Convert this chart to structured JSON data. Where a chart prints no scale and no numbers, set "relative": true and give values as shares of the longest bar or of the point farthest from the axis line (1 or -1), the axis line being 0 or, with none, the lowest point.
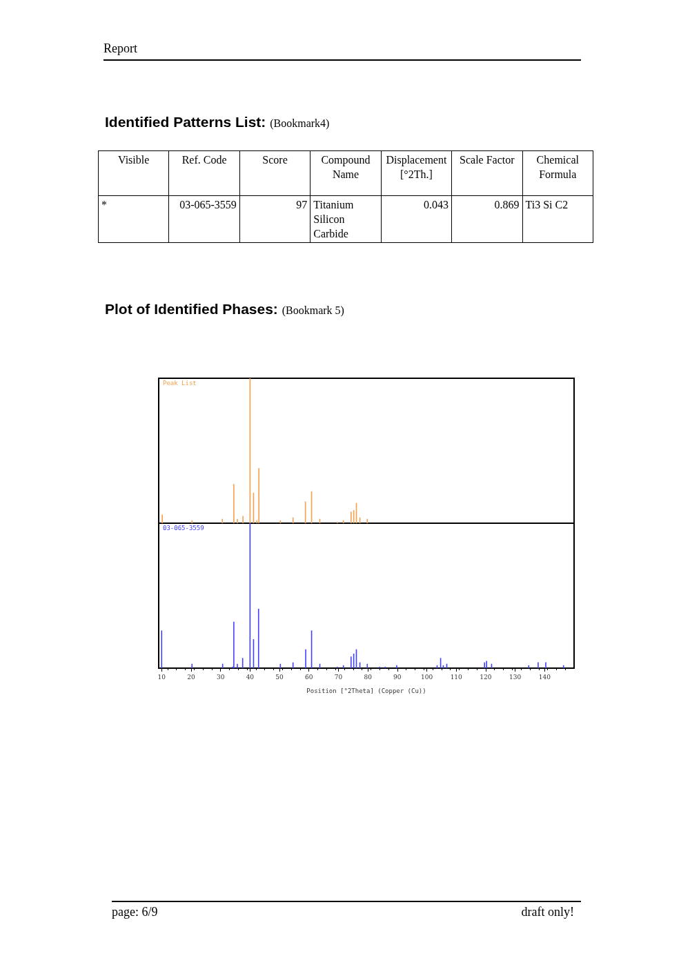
{
  "chart_data": [
    {
      "type": "other",
      "title": "Identified Patterns List: (Bookmark4)",
      "annotations": [
        "Report"
      ],
      "categories": [
        "Visible",
        "Ref. Code",
        "Score",
        "Compound Name",
        "Displacement [°2Th.]",
        "Scale Factor",
        "Chemical Formula"
      ],
      "cell_labels": [
        [
          "*",
          "03-065-3559",
          "97",
          "Titanium Silicon Carbide",
          "0.043",
          "0.869",
          "Ti3 Si C2"
        ]
      ]
    },
    {
      "type": "bar",
      "title": "Plot of Identified Phases: (Bookmark 5)",
      "relative": true,
      "xlim": [
        9,
        150
      ],
      "xticks": [
        10,
        20,
        30,
        40,
        50,
        60,
        70,
        80,
        90,
        100,
        110,
        120,
        130,
        140
      ],
      "tick_labels": false,
      "series": [
        {
          "name": "Peak List",
          "color": "#f5a04a",
          "x": [
            10.2,
            20.3,
            30.6,
            34.5,
            35.7,
            37.6,
            40.0,
            41.2,
            42.3,
            43.0,
            50.3,
            54.6,
            58.8,
            60.9,
            63.7,
            69.6,
            71.7,
            74.3,
            75.2,
            76.1,
            77.3,
            79.8
          ],
          "values": [
            0.06,
            0.02,
            0.03,
            0.27,
            0.03,
            0.05,
            1,
            0.21,
            0.02,
            0.38,
            0.02,
            0.04,
            0.15,
            0.22,
            0.03,
            0.01,
            0.02,
            0.08,
            0.09,
            0.14,
            0.04,
            0.03
          ]
        }
      ]
    },
    {
      "type": "bar",
      "relative": true,
      "xlim": [
        9,
        150
      ],
      "xticks": [
        10,
        20,
        30,
        40,
        50,
        60,
        70,
        80,
        90,
        100,
        110,
        120,
        130,
        140
      ],
      "xlabel": "Position [°2Theta] (Copper (Cu))",
      "annotations": [
        "page: 6/9",
        "draft only!"
      ],
      "series": [
        {
          "name": "03-065-3559",
          "color": "#4040ff",
          "x": [
            10.0,
            20.3,
            30.7,
            34.1,
            34.5,
            35.7,
            37.5,
            40.0,
            41.2,
            42.9,
            50.3,
            52.2,
            54.6,
            58.9,
            60.9,
            63.7,
            69.6,
            71.7,
            74.3,
            75.2,
            76.1,
            77.3,
            79.8,
            84.0,
            85.9,
            89.8,
            101.4,
            103.5,
            104.7,
            105.6,
            106.8,
            119.6,
            120.3,
            122.0,
            134.6,
            137.8,
            140.4,
            146.4
          ],
          "values": [
            0.26,
            0.03,
            0.03,
            0.01,
            0.32,
            0.03,
            0.07,
            1,
            0.2,
            0.41,
            0.03,
            null,
            0.04,
            0.13,
            0.26,
            0.03,
            0.01,
            0.02,
            0.08,
            0.1,
            0.13,
            0.04,
            0.03,
            0.01,
            0.01,
            0.02,
            null,
            0.02,
            0.07,
            0.02,
            0.03,
            0.04,
            0.05,
            0.03,
            0.02,
            0.04,
            0.04,
            0.02
          ]
        }
      ]
    }
  ]
}
